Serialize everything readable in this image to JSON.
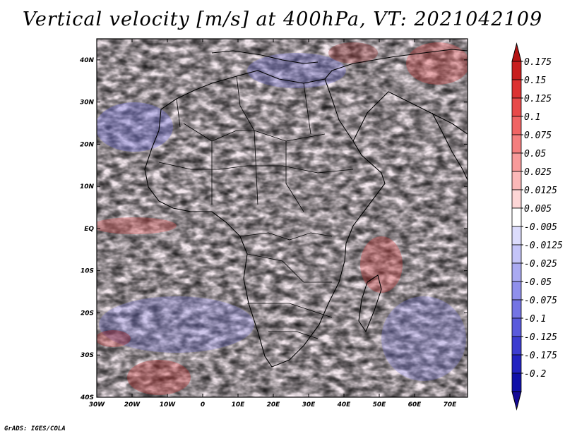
{
  "title": "Vertical velocity [m/s] at 400hPa, VT: 2021042109",
  "credit": "GrADS: IGES/COLA",
  "map": {
    "lon_range": [
      -30,
      75
    ],
    "lat_range": [
      -40,
      45
    ],
    "lat_ticks": [
      "40N",
      "30N",
      "20N",
      "10N",
      "EQ",
      "10S",
      "20S",
      "30S",
      "40S"
    ],
    "lon_ticks": [
      "30W",
      "20W",
      "10W",
      "0",
      "10E",
      "20E",
      "30E",
      "40E",
      "50E",
      "60E",
      "70E"
    ]
  },
  "colorbar": {
    "labels": [
      "0.175",
      "0.15",
      "0.125",
      "0.1",
      "0.075",
      "0.05",
      "0.025",
      "0.0125",
      "0.005",
      "-0.005",
      "-0.0125",
      "-0.025",
      "-0.05",
      "-0.075",
      "-0.1",
      "-0.125",
      "-0.175",
      "-0.2"
    ],
    "colors": [
      "#c81e1e",
      "#dc3232",
      "#e84a4a",
      "#f06464",
      "#f47e7e",
      "#f89a9a",
      "#fbb8b8",
      "#fdd6d6",
      "#ffffff",
      "#dcdcfc",
      "#c4c4f8",
      "#aaaaf2",
      "#9090ec",
      "#7474e4",
      "#5a5adc",
      "#3c3cd0",
      "#2222c0",
      "#1010a8"
    ],
    "top_color": "#b41414",
    "bottom_color": "#140a96"
  }
}
